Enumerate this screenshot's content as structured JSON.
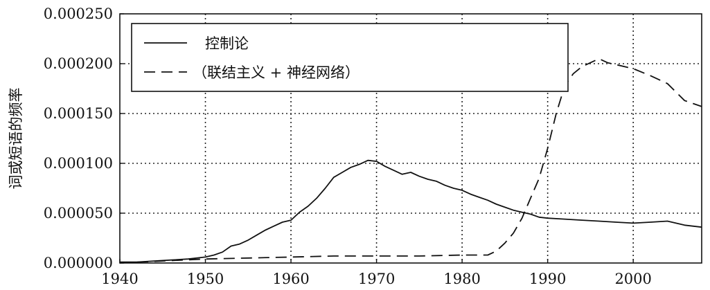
{
  "chart_data": {
    "type": "line",
    "title": "",
    "xlabel": "",
    "ylabel": "词或短语的频率",
    "xlim": [
      1940,
      2008
    ],
    "ylim": [
      0,
      0.00025
    ],
    "x_ticks": [
      "1940",
      "1950",
      "1960",
      "1970",
      "1980",
      "1990",
      "2000"
    ],
    "y_ticks": [
      "0.000000",
      "0.000050",
      "0.000100",
      "0.000150",
      "0.000200",
      "0.000250"
    ],
    "grid": true,
    "legend_position": "top-left",
    "series": [
      {
        "name": "控制论",
        "style": "solid",
        "color": "#111111",
        "x": [
          1940,
          1942,
          1944,
          1946,
          1948,
          1950,
          1951,
          1952,
          1953,
          1954,
          1955,
          1956,
          1957,
          1958,
          1959,
          1960,
          1961,
          1962,
          1963,
          1964,
          1965,
          1966,
          1967,
          1968,
          1969,
          1970,
          1971,
          1972,
          1973,
          1974,
          1975,
          1976,
          1977,
          1978,
          1979,
          1980,
          1981,
          1982,
          1983,
          1984,
          1985,
          1986,
          1987,
          1988,
          1989,
          1990,
          1992,
          1994,
          1996,
          1998,
          2000,
          2002,
          2004,
          2006,
          2008
        ],
        "y": [
          1e-06,
          1e-06,
          2e-06,
          3e-06,
          4e-06,
          6e-06,
          8e-06,
          1.1e-05,
          1.7e-05,
          1.9e-05,
          2.3e-05,
          2.8e-05,
          3.3e-05,
          3.7e-05,
          4.1e-05,
          4.3e-05,
          5.1e-05,
          5.7e-05,
          6.5e-05,
          7.5e-05,
          8.6e-05,
          9.1e-05,
          9.6e-05,
          9.9e-05,
          0.000103,
          0.000102,
          9.7e-05,
          9.3e-05,
          8.9e-05,
          9.1e-05,
          8.7e-05,
          8.4e-05,
          8.2e-05,
          7.8e-05,
          7.5e-05,
          7.3e-05,
          6.9e-05,
          6.6e-05,
          6.3e-05,
          5.9e-05,
          5.6e-05,
          5.3e-05,
          5.1e-05,
          4.9e-05,
          4.6e-05,
          4.5e-05,
          4.4e-05,
          4.3e-05,
          4.2e-05,
          4.1e-05,
          4e-05,
          4.1e-05,
          4.2e-05,
          3.8e-05,
          3.6e-05
        ]
      },
      {
        "name": "（联结主义 + 神经网络）",
        "style": "dashed",
        "color": "#111111",
        "x": [
          1940,
          1945,
          1950,
          1955,
          1960,
          1965,
          1970,
          1975,
          1980,
          1983,
          1984,
          1985,
          1986,
          1987,
          1988,
          1989,
          1990,
          1991,
          1992,
          1993,
          1994,
          1995,
          1996,
          1997,
          1998,
          2000,
          2002,
          2004,
          2006,
          2008
        ],
        "y": [
          0.0,
          2e-06,
          4e-06,
          5e-06,
          6e-06,
          7e-06,
          7e-06,
          7e-06,
          8e-06,
          8e-06,
          1.2e-05,
          2e-05,
          3e-05,
          4.5e-05,
          6.5e-05,
          8.5e-05,
          0.000115,
          0.00015,
          0.000178,
          0.00019,
          0.000197,
          0.000201,
          0.000205,
          0.000201,
          0.000199,
          0.000195,
          0.000188,
          0.00018,
          0.000163,
          0.000157
        ]
      }
    ]
  }
}
